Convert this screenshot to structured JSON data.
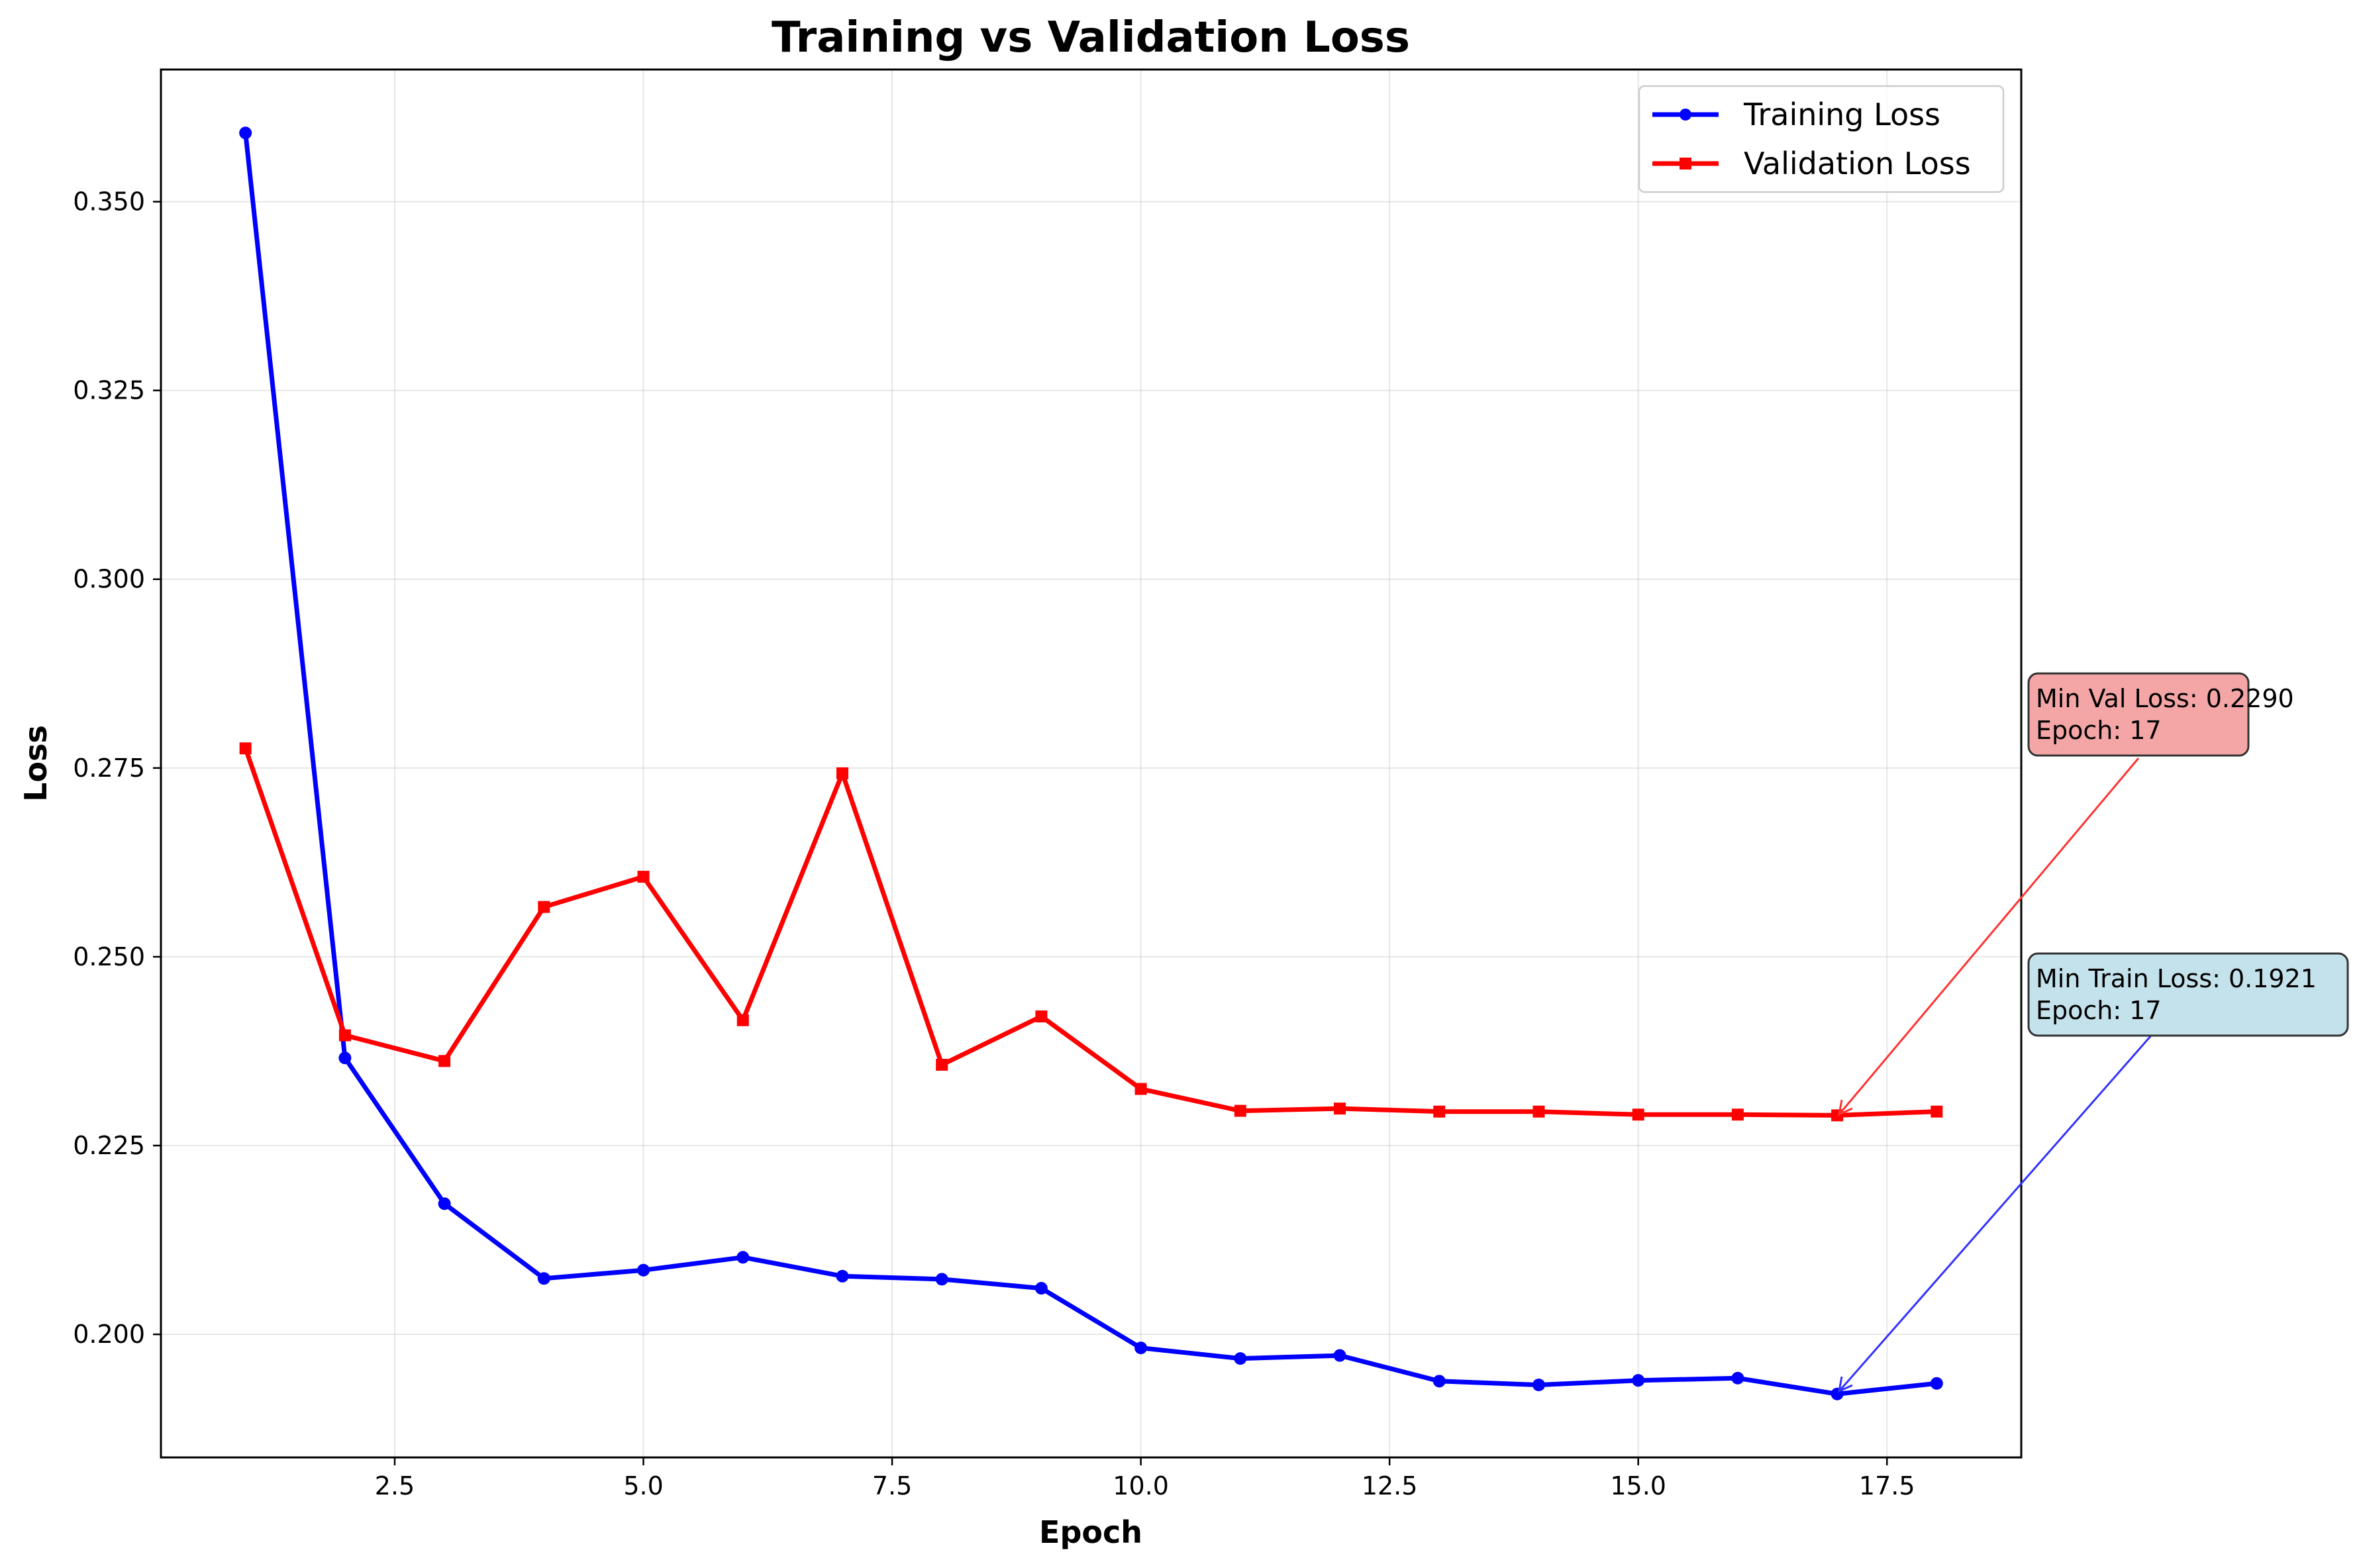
{
  "chart_data": {
    "type": "line",
    "title": "Training vs Validation Loss",
    "xlabel": "Epoch",
    "ylabel": "Loss",
    "xlim": [
      0.15,
      18.85
    ],
    "ylim": [
      0.1837,
      0.3675
    ],
    "xticks": [
      2.5,
      5.0,
      7.5,
      10.0,
      12.5,
      15.0,
      17.5
    ],
    "xtick_labels": [
      "2.5",
      "5.0",
      "7.5",
      "10.0",
      "12.5",
      "15.0",
      "17.5"
    ],
    "yticks": [
      0.2,
      0.225,
      0.25,
      0.275,
      0.3,
      0.325,
      0.35
    ],
    "ytick_labels": [
      "0.200",
      "0.225",
      "0.250",
      "0.275",
      "0.300",
      "0.325",
      "0.350"
    ],
    "grid": true,
    "legend_position": "top-right",
    "x": [
      1,
      2,
      3,
      4,
      5,
      6,
      7,
      8,
      9,
      10,
      11,
      12,
      13,
      14,
      15,
      16,
      17,
      18
    ],
    "series": [
      {
        "name": "Training Loss",
        "color": "#0000ff",
        "marker": "circle",
        "values": [
          0.3591,
          0.2366,
          0.2173,
          0.2074,
          0.2085,
          0.2102,
          0.2077,
          0.2073,
          0.2061,
          0.1982,
          0.1968,
          0.1972,
          0.1938,
          0.1933,
          0.1939,
          0.1942,
          0.1921,
          0.1935
        ]
      },
      {
        "name": "Validation Loss",
        "color": "#ff0000",
        "marker": "square",
        "values": [
          0.2776,
          0.2396,
          0.2362,
          0.2566,
          0.2606,
          0.2416,
          0.2743,
          0.2357,
          0.2421,
          0.2325,
          0.2296,
          0.2299,
          0.2295,
          0.2295,
          0.2291,
          0.2291,
          0.229,
          0.2295
        ]
      }
    ],
    "annotations": [
      {
        "lines": [
          "Min Val Loss: 0.2290",
          "Epoch: 17"
        ],
        "target_x": 17,
        "target_y": 0.229,
        "box_color": "#f4a6a6",
        "arrow_color": "#ff3333"
      },
      {
        "lines": [
          "Min Train Loss: 0.1921",
          "Epoch: 17"
        ],
        "target_x": 17,
        "target_y": 0.1921,
        "box_color": "#c4e2ec",
        "arrow_color": "#3333ff"
      }
    ]
  }
}
